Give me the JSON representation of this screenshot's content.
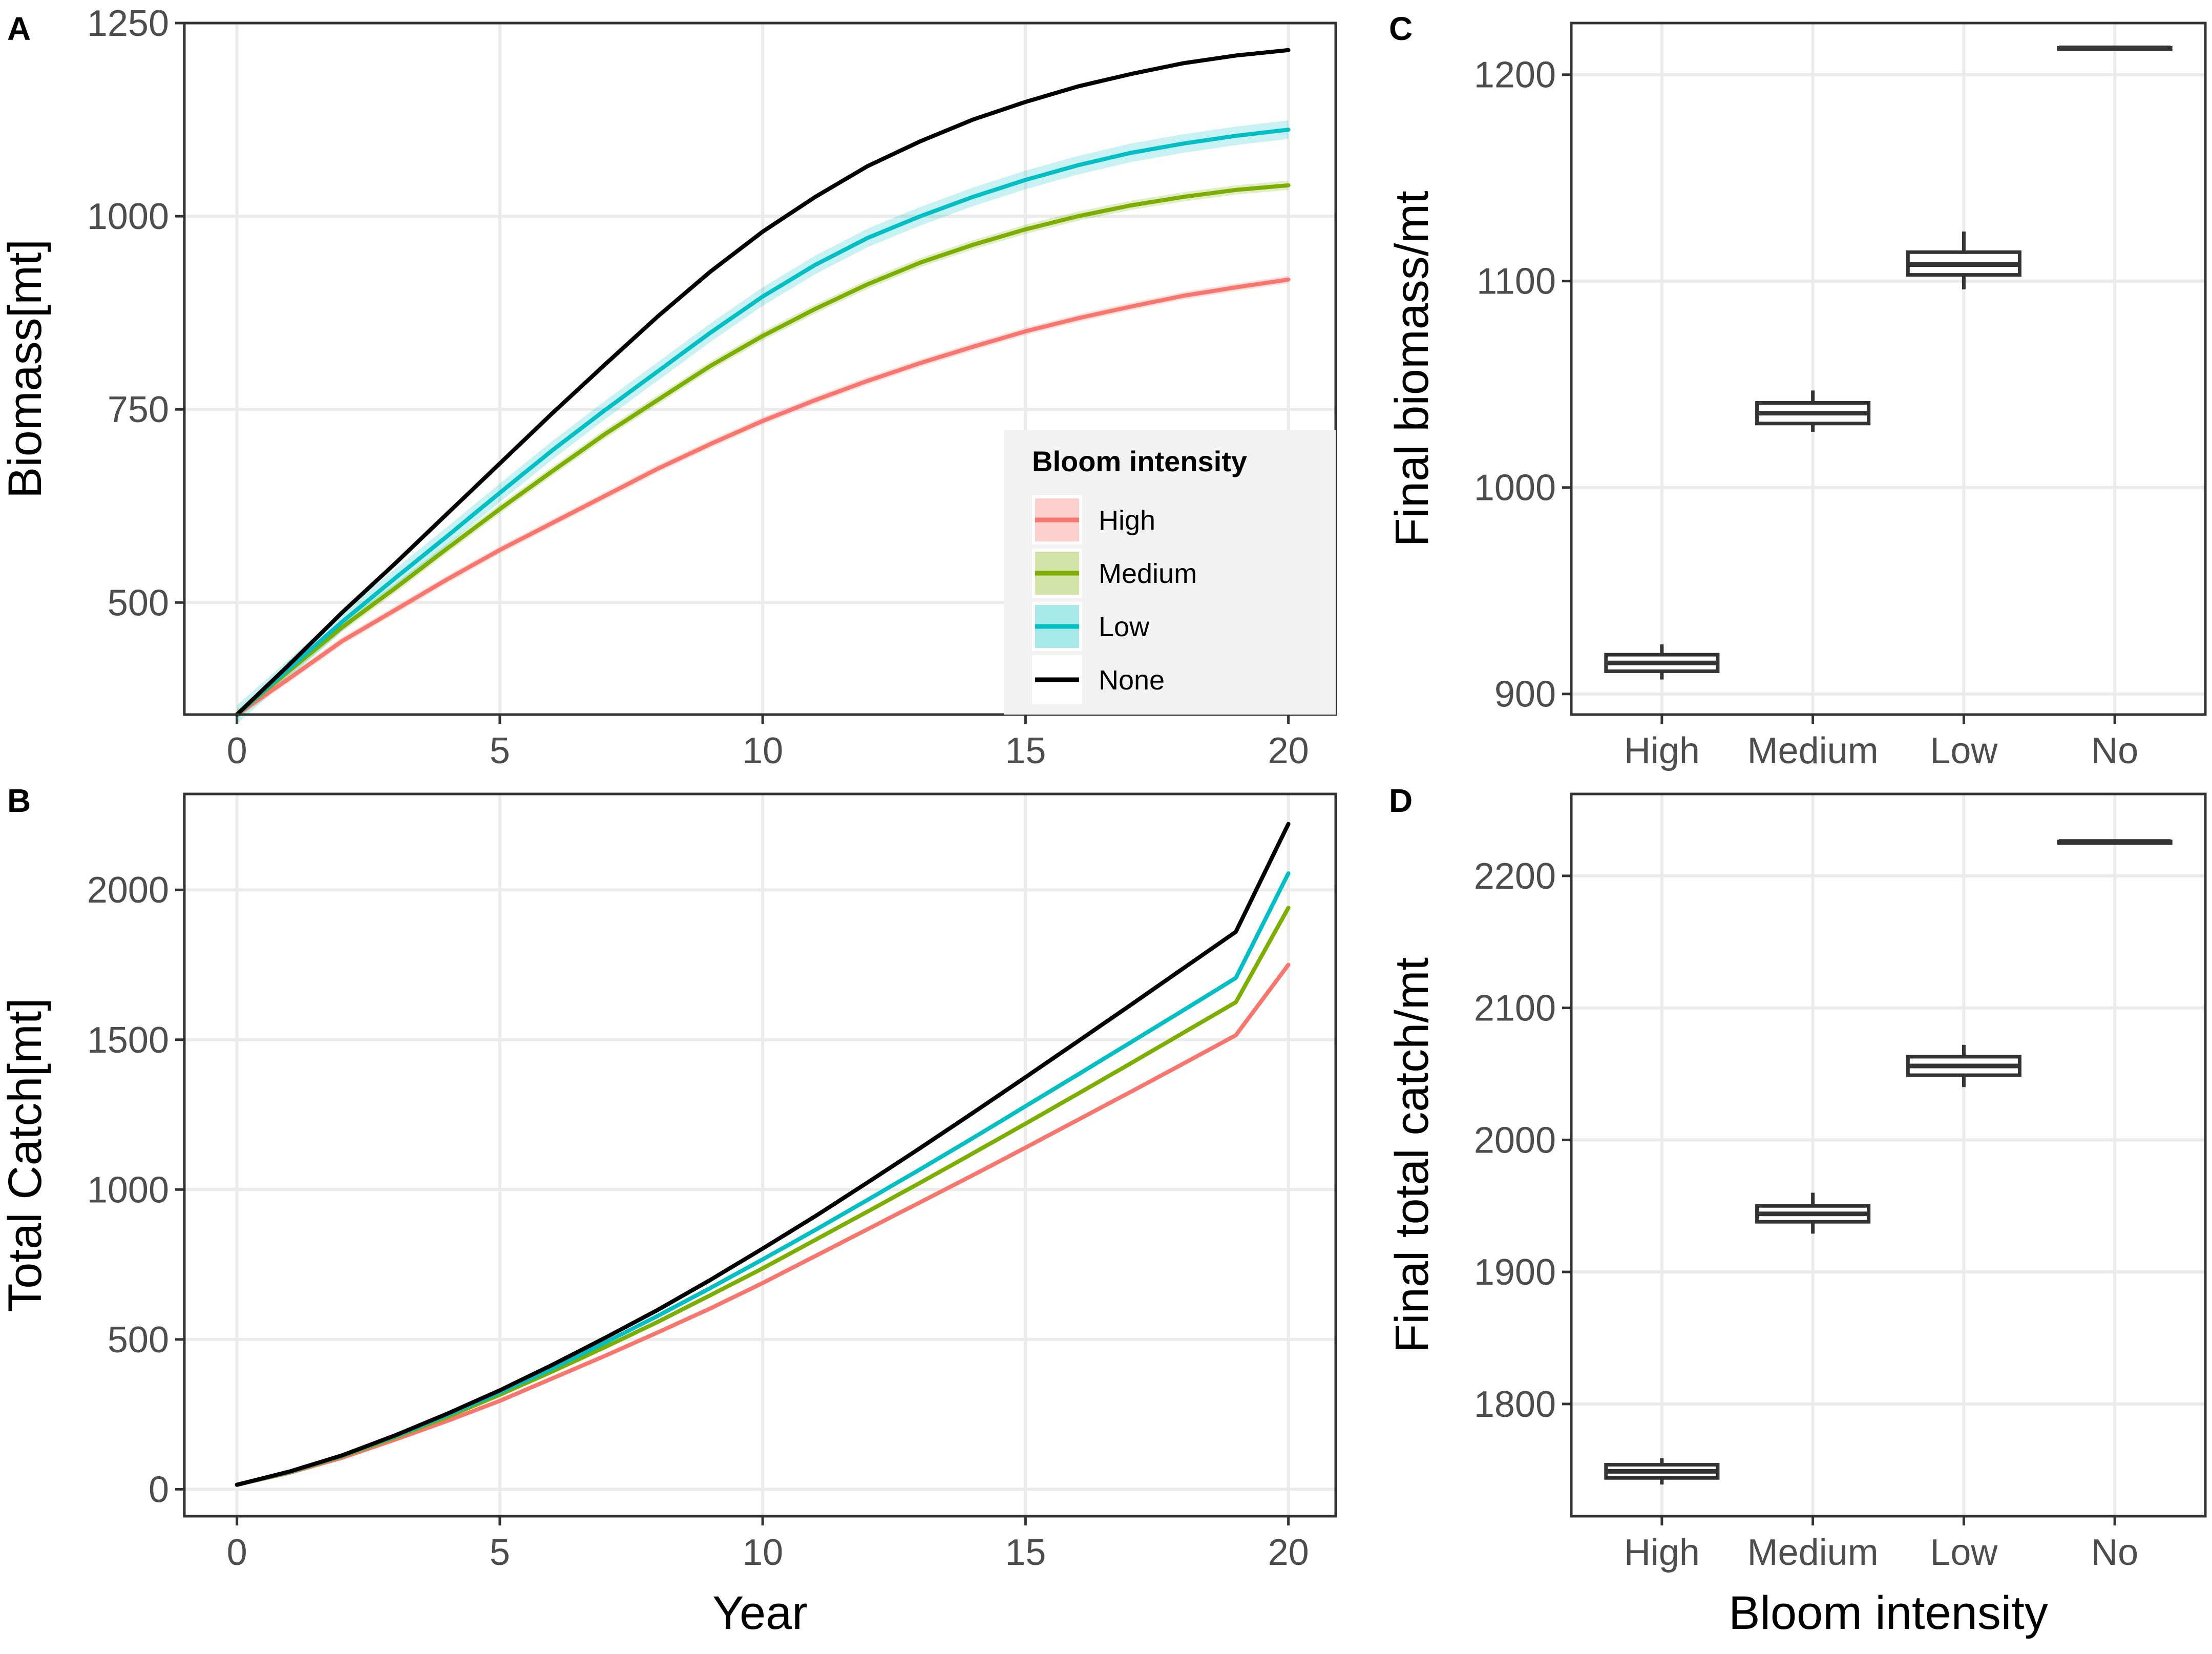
{
  "colors": {
    "High": "#F8766D",
    "Medium": "#7CAE00",
    "Low": "#00BFC4",
    "None": "#000000"
  },
  "chart_data": [
    {
      "panel": "A",
      "type": "line",
      "xlabel": "",
      "ylabel": "Biomass[mt]",
      "xlim": [
        -1,
        20.9
      ],
      "ylim": [
        355,
        1250
      ],
      "x_ticks": [
        0,
        5,
        10,
        15,
        20
      ],
      "y_ticks": [
        500,
        750,
        1000,
        1250
      ],
      "x": [
        0,
        1,
        2,
        3,
        4,
        5,
        6,
        7,
        8,
        9,
        10,
        11,
        12,
        13,
        14,
        15,
        16,
        17,
        18,
        19,
        20
      ],
      "series": [
        {
          "name": "High",
          "values": [
            355,
            402,
            450,
            490,
            530,
            568,
            603,
            638,
            673,
            705,
            735,
            762,
            787,
            810,
            831,
            851,
            868,
            883,
            897,
            908,
            918
          ],
          "band": 5
        },
        {
          "name": "Medium",
          "values": [
            355,
            412,
            468,
            518,
            570,
            621,
            670,
            718,
            762,
            806,
            845,
            880,
            912,
            940,
            963,
            983,
            1000,
            1014,
            1025,
            1034,
            1040
          ],
          "band": 6
        },
        {
          "name": "Low",
          "values": [
            355,
            415,
            475,
            531,
            586,
            642,
            697,
            749,
            799,
            849,
            896,
            937,
            972,
            1000,
            1025,
            1047,
            1066,
            1082,
            1094,
            1104,
            1112
          ],
          "band": 12
        },
        {
          "name": "None",
          "values": [
            355,
            420,
            487,
            550,
            615,
            680,
            745,
            808,
            870,
            928,
            980,
            1025,
            1065,
            1097,
            1125,
            1148,
            1168,
            1184,
            1198,
            1208,
            1215
          ]
        }
      ],
      "legend": {
        "title": "Bloom intensity",
        "entries": [
          "High",
          "Medium",
          "Low",
          "None"
        ],
        "placement": "bottom-right"
      }
    },
    {
      "panel": "B",
      "type": "line",
      "xlabel": "Year",
      "ylabel": "Total Catch[mt]",
      "xlim": [
        -1,
        20.9
      ],
      "ylim": [
        -90,
        2320
      ],
      "x_ticks": [
        0,
        5,
        10,
        15,
        20
      ],
      "y_ticks": [
        0,
        500,
        1000,
        1500,
        2000
      ],
      "x": [
        0,
        1,
        2,
        3,
        4,
        5,
        6,
        7,
        8,
        9,
        10,
        11,
        12,
        13,
        14,
        15,
        16,
        17,
        18,
        19,
        20
      ],
      "series": [
        {
          "name": "High",
          "values": [
            15,
            55,
            105,
            165,
            228,
            295,
            370,
            445,
            523,
            603,
            688,
            778,
            868,
            958,
            1048,
            1140,
            1233,
            1326,
            1420,
            1515,
            1750
          ]
        },
        {
          "name": "Medium",
          "values": [
            15,
            57,
            110,
            173,
            241,
            315,
            393,
            474,
            558,
            647,
            737,
            832,
            927,
            1023,
            1121,
            1220,
            1320,
            1421,
            1523,
            1625,
            1940
          ]
        },
        {
          "name": "Low",
          "values": [
            15,
            58,
            112,
            176,
            247,
            323,
            403,
            489,
            578,
            671,
            767,
            865,
            966,
            1068,
            1172,
            1278,
            1384,
            1491,
            1598,
            1706,
            2055
          ]
        },
        {
          "name": "None",
          "values": [
            15,
            59,
            113,
            179,
            252,
            330,
            415,
            505,
            598,
            698,
            803,
            911,
            1024,
            1139,
            1256,
            1375,
            1495,
            1616,
            1738,
            1860,
            2220
          ]
        }
      ]
    },
    {
      "panel": "C",
      "type": "box",
      "xlabel": "",
      "ylabel": "Final biomass/mt",
      "categories": [
        "High",
        "Medium",
        "Low",
        "No"
      ],
      "ylim": [
        890,
        1225
      ],
      "y_ticks": [
        900,
        1000,
        1100,
        1200
      ],
      "boxes": [
        {
          "category": "High",
          "min": 907,
          "q1": 911,
          "median": 915,
          "q3": 919,
          "max": 924
        },
        {
          "category": "Medium",
          "min": 1027,
          "q1": 1031,
          "median": 1036,
          "q3": 1041,
          "max": 1047
        },
        {
          "category": "Low",
          "min": 1096,
          "q1": 1103,
          "median": 1108,
          "q3": 1114,
          "max": 1124
        },
        {
          "category": "No",
          "min": 1213,
          "q1": 1213,
          "median": 1213,
          "q3": 1213,
          "max": 1213
        }
      ]
    },
    {
      "panel": "D",
      "type": "box",
      "xlabel": "Bloom intensity",
      "ylabel": "Final total catch/mt",
      "categories": [
        "High",
        "Medium",
        "Low",
        "No"
      ],
      "ylim": [
        1715,
        2262
      ],
      "y_ticks": [
        1800,
        1900,
        2000,
        2100,
        2200
      ],
      "boxes": [
        {
          "category": "High",
          "min": 1739,
          "q1": 1744,
          "median": 1749,
          "q3": 1754,
          "max": 1759
        },
        {
          "category": "Medium",
          "min": 1929,
          "q1": 1938,
          "median": 1944,
          "q3": 1950,
          "max": 1960
        },
        {
          "category": "Low",
          "min": 2040,
          "q1": 2049,
          "median": 2056,
          "q3": 2063,
          "max": 2072
        },
        {
          "category": "No",
          "min": 2226,
          "q1": 2226,
          "median": 2226,
          "q3": 2226,
          "max": 2226
        }
      ]
    }
  ]
}
